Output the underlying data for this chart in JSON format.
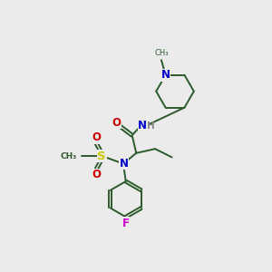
{
  "bg_color": "#ebebeb",
  "bond_color": "#2d5a2d",
  "atom_colors": {
    "N": "#0000cc",
    "O": "#cc0000",
    "S": "#cccc00",
    "F": "#cc00cc",
    "H": "#888888"
  },
  "figsize": [
    3.0,
    3.0
  ],
  "dpi": 100
}
